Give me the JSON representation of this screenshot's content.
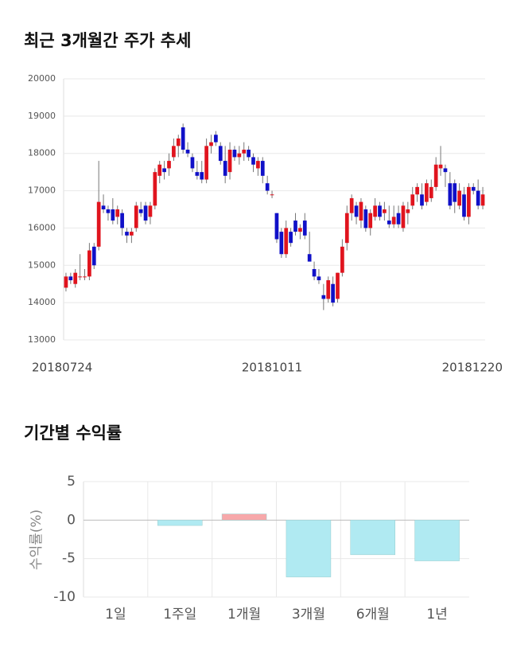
{
  "chart_data": [
    {
      "type": "candlestick",
      "title": "최근 3개월간 주가 추세",
      "categories": [
        "20180724",
        null,
        null,
        null,
        null,
        null,
        null,
        null,
        null,
        null,
        null,
        null,
        null,
        null,
        null,
        null,
        null,
        null,
        null,
        null,
        null,
        null,
        null,
        null,
        null,
        null,
        null,
        null,
        null,
        null,
        null,
        null,
        null,
        null,
        null,
        null,
        null,
        null,
        null,
        null,
        null,
        null,
        null,
        null,
        "20181011",
        null,
        null,
        null,
        null,
        null,
        null,
        null,
        null,
        null,
        null,
        null,
        null,
        null,
        null,
        null,
        null,
        null,
        null,
        null,
        null,
        null,
        null,
        null,
        null,
        null,
        null,
        null,
        null,
        null,
        null,
        null,
        null,
        null,
        null,
        null,
        null,
        null,
        null,
        null,
        null,
        null,
        null,
        null,
        null,
        "20181220"
      ],
      "open": [
        14400,
        14700,
        14500,
        14700,
        14700,
        14700,
        15500,
        15500,
        16600,
        16500,
        16500,
        16300,
        16400,
        15900,
        15800,
        16000,
        16500,
        16600,
        16300,
        16600,
        17400,
        17600,
        17600,
        17900,
        18200,
        18700,
        18100,
        17900,
        17500,
        17500,
        17300,
        18200,
        18500,
        18200,
        17800,
        17500,
        18100,
        17900,
        18000,
        18100,
        17900,
        17600,
        17800,
        17200,
        16900,
        16400,
        15900,
        15300,
        15900,
        16200,
        15900,
        16200,
        15300,
        14900,
        14700,
        14200,
        14100,
        14500,
        14100,
        14800,
        15600,
        16400,
        16600,
        16200,
        16500,
        16000,
        16300,
        16600,
        16400,
        16200,
        16100,
        16400,
        16000,
        16400,
        16600,
        16900,
        16900,
        16700,
        16800,
        17100,
        17600,
        17600,
        17200,
        17200,
        16600,
        16900,
        16300,
        17100,
        17000,
        16600
      ],
      "high": [
        14800,
        14800,
        14900,
        15300,
        14900,
        15600,
        15600,
        17800,
        16900,
        16600,
        16800,
        16600,
        16500,
        16000,
        16000,
        16700,
        16700,
        16700,
        16700,
        17600,
        17800,
        17800,
        18000,
        18400,
        18500,
        18800,
        18300,
        18000,
        17800,
        17800,
        18400,
        18500,
        18600,
        18300,
        18200,
        18300,
        18200,
        18200,
        18300,
        18200,
        18000,
        17900,
        17900,
        17400,
        17000,
        16400,
        16000,
        16200,
        16000,
        16400,
        16100,
        16400,
        15900,
        15100,
        14900,
        14500,
        14700,
        14700,
        14800,
        15700,
        16600,
        16900,
        16700,
        16800,
        16600,
        16500,
        16800,
        16700,
        16700,
        16600,
        16600,
        16600,
        16700,
        16700,
        17100,
        17200,
        17200,
        17300,
        17300,
        17900,
        18200,
        17700,
        17500,
        17300,
        17200,
        17100,
        17200,
        17200,
        17300,
        17100
      ],
      "low": [
        14300,
        14500,
        14400,
        14600,
        14600,
        14600,
        14900,
        15400,
        16400,
        16200,
        16100,
        16100,
        15800,
        15600,
        15600,
        15900,
        16300,
        16100,
        16100,
        16500,
        17200,
        17300,
        17400,
        17800,
        17900,
        18000,
        17900,
        17500,
        17300,
        17200,
        17200,
        18000,
        18200,
        17700,
        17200,
        17300,
        17800,
        17700,
        17800,
        17800,
        17500,
        17400,
        17200,
        16900,
        16800,
        15600,
        15200,
        15200,
        15500,
        15800,
        15700,
        15700,
        15100,
        14600,
        14500,
        13800,
        14000,
        13900,
        14000,
        14700,
        15400,
        16200,
        16100,
        16000,
        15900,
        15800,
        16200,
        16200,
        16200,
        16000,
        16000,
        16000,
        15900,
        16100,
        16500,
        16700,
        16500,
        16600,
        16700,
        17000,
        17400,
        17100,
        16500,
        16400,
        16500,
        16200,
        16100,
        16900,
        16500,
        16500
      ],
      "close": [
        14700,
        14600,
        14800,
        14700,
        14700,
        15400,
        15000,
        16700,
        16500,
        16400,
        16200,
        16500,
        16000,
        15800,
        15900,
        16600,
        16400,
        16200,
        16600,
        17500,
        17700,
        17500,
        17800,
        18200,
        18400,
        18100,
        18000,
        17600,
        17400,
        17300,
        18200,
        18300,
        18300,
        17800,
        17400,
        18100,
        17900,
        18000,
        18100,
        17900,
        17700,
        17800,
        17400,
        17000,
        16900,
        15700,
        15300,
        16000,
        15600,
        15900,
        16000,
        15800,
        15100,
        14700,
        14600,
        14100,
        14600,
        14000,
        14800,
        15500,
        16400,
        16800,
        16300,
        16700,
        16000,
        16400,
        16600,
        16300,
        16500,
        16100,
        16300,
        16100,
        16600,
        16500,
        16900,
        17100,
        16600,
        17200,
        17100,
        17700,
        17700,
        17500,
        16600,
        16700,
        17000,
        16300,
        17100,
        17000,
        16600,
        16900
      ],
      "up_color": "#e0141e",
      "down_color": "#1010c8",
      "ylim": [
        13000,
        20000
      ],
      "yticks": [
        13000,
        14000,
        15000,
        16000,
        17000,
        18000,
        19000,
        20000
      ],
      "grid": true
    },
    {
      "type": "bar",
      "title": "기간별 수익률",
      "ylabel": "수익률(%)",
      "categories": [
        "1일",
        "1주일",
        "1개월",
        "3개월",
        "6개월",
        "1년"
      ],
      "values": [
        0,
        -0.7,
        0.8,
        -7.4,
        -4.5,
        -5.3
      ],
      "colors": [
        "#b0eaf2",
        "#b0eaf2",
        "#f7a8aa",
        "#b0eaf2",
        "#b0eaf2",
        "#b0eaf2"
      ],
      "ylim": [
        -10,
        5
      ],
      "yticks": [
        -10,
        -5,
        0,
        5
      ],
      "grid": true
    }
  ]
}
